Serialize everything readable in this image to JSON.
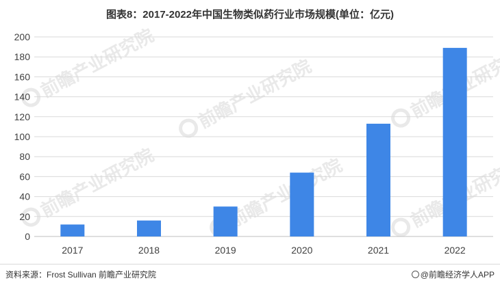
{
  "title": "图表8：2017-2022年中国生物类似药行业市场规模(单位：亿元)",
  "watermark": "前瞻产业研究院",
  "chart_data": {
    "type": "bar",
    "categories": [
      "2017",
      "2018",
      "2019",
      "2020",
      "2021",
      "2022"
    ],
    "values": [
      12,
      16,
      30,
      64,
      113,
      189
    ],
    "ylim": [
      0,
      200
    ],
    "yticks": [
      0,
      20,
      40,
      60,
      80,
      100,
      120,
      140,
      160,
      180,
      200
    ],
    "bar_color": "#3e86e6",
    "grid": true,
    "legend": "none"
  },
  "footer": {
    "source": "资料来源：Frost Sullivan 前瞻产业研究院",
    "brand": "@前瞻经济学人APP"
  }
}
